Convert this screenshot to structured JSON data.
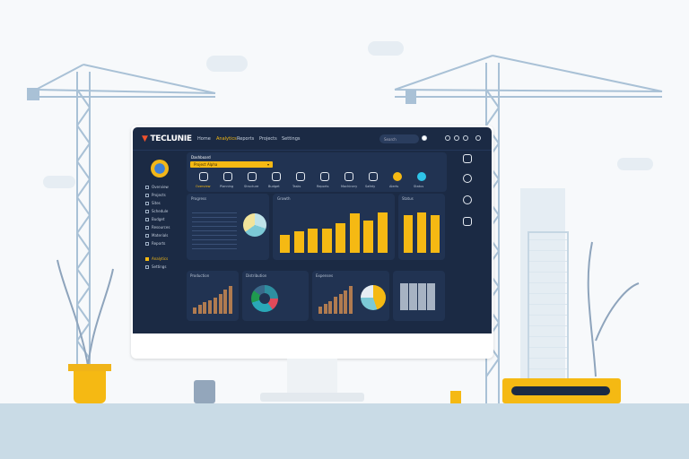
{
  "app": {
    "logo": "TECLUNIE",
    "nav": [
      "Home",
      "Analytics",
      "Reports",
      "Projects",
      "Settings"
    ],
    "search_placeholder": "Search"
  },
  "sidebar": {
    "items": [
      "Overview",
      "Projects",
      "Sites",
      "Schedule",
      "Budget",
      "Resources",
      "Materials",
      "Reports"
    ],
    "active": "Analytics",
    "last": "Settings"
  },
  "toolbar": {
    "title": "Dashboard",
    "dropdown": "Project Alpha",
    "icons": [
      "Overview",
      "Planning",
      "Structure",
      "Budget",
      "Tasks",
      "Reports",
      "Machinery",
      "Safety",
      "Alerts",
      "Status"
    ]
  },
  "panels": {
    "progress_title": "Progress",
    "growth_title": "Growth",
    "status_title": "Status",
    "monthly_title": "Production",
    "distribution_title": "Distribution",
    "costs_title": "Expenses"
  },
  "chart_data": [
    {
      "type": "bar",
      "values": [
        22,
        26,
        30,
        30,
        36,
        48,
        40,
        50
      ]
    },
    {
      "type": "bar",
      "values": [
        44,
        48,
        44
      ]
    },
    {
      "type": "bar",
      "values": [
        10,
        14,
        18,
        22,
        26,
        32,
        38,
        44
      ]
    },
    {
      "type": "bar",
      "values": [
        10,
        14,
        18,
        24,
        28,
        34,
        40
      ]
    }
  ],
  "colors": {
    "accent": "#f5b913",
    "screen": "#1b2a44",
    "panel": "#213352",
    "cyan": "#2ec4e8"
  }
}
